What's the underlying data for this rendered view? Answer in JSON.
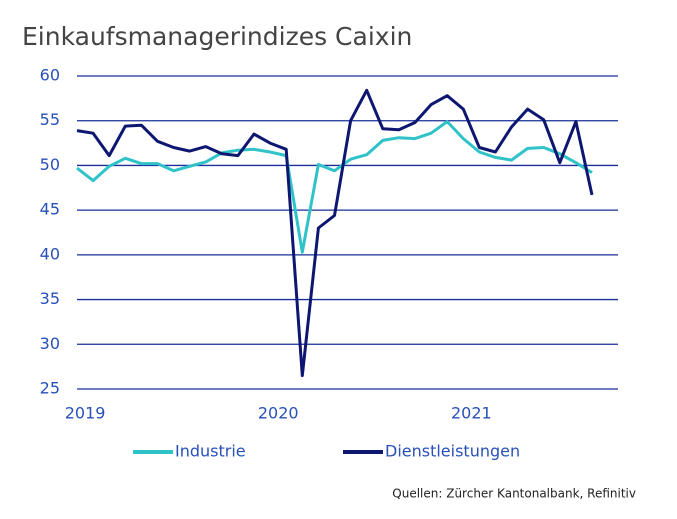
{
  "chart_data": {
    "type": "line",
    "title": "Einkaufsmanagerindizes Caixin",
    "categories": [
      null,
      "2019",
      null,
      null,
      null,
      null,
      null,
      null,
      null,
      null,
      null,
      null,
      null,
      "2020",
      null,
      null,
      null,
      null,
      null,
      null,
      null,
      null,
      null,
      null,
      null,
      "2021",
      null,
      null,
      null,
      null,
      null,
      null,
      null
    ],
    "series": [
      {
        "name": "Industrie",
        "color": "#2fc3c9",
        "values": [
          49.7,
          48.3,
          49.9,
          50.8,
          50.2,
          50.2,
          49.4,
          49.9,
          50.4,
          51.4,
          51.7,
          51.8,
          51.5,
          51.1,
          40.3,
          50.1,
          49.4,
          50.7,
          51.2,
          52.8,
          53.1,
          53.0,
          53.6,
          54.9,
          53.0,
          51.5,
          50.9,
          50.6,
          51.9,
          52.0,
          51.3,
          50.3,
          49.2
        ]
      },
      {
        "name": "Dienstleistungen",
        "color": "#0d1670",
        "values": [
          53.9,
          53.6,
          51.1,
          54.4,
          54.5,
          52.7,
          52.0,
          51.6,
          52.1,
          51.3,
          51.1,
          53.5,
          52.5,
          51.8,
          26.5,
          43.0,
          44.4,
          55.0,
          58.4,
          54.1,
          54.0,
          54.8,
          56.8,
          57.8,
          56.3,
          52.0,
          51.5,
          54.3,
          56.3,
          55.1,
          50.3,
          54.9,
          46.7
        ]
      }
    ],
    "ylim": [
      25,
      60
    ],
    "yticks": [
      25,
      30,
      35,
      40,
      45,
      50,
      55,
      60
    ],
    "grid": true,
    "source": "Quellen: Zürcher Kantonalbank, Refinitiv"
  }
}
